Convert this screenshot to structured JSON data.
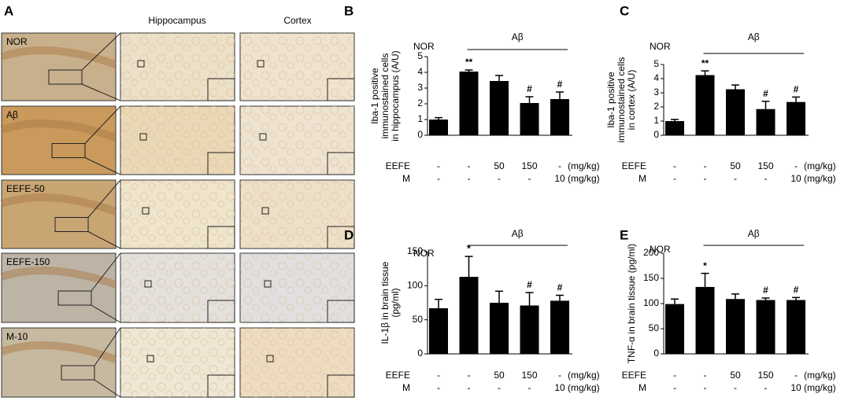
{
  "panel_a": {
    "label": "A",
    "columns": [
      "Hippocampus",
      "Cortex"
    ],
    "rows": [
      "NOR",
      "Aβ",
      "EEFE-50",
      "EEFE-150",
      "M-10"
    ]
  },
  "chart_data": [
    {
      "type": "bar",
      "panel_label": "B",
      "ylabel": [
        "Iba-1 positive",
        "immunostained cells",
        "in hippocampus (A/U)"
      ],
      "categories": [
        null,
        null,
        null,
        null,
        null
      ],
      "values": [
        1.0,
        4.05,
        3.45,
        2.05,
        2.3
      ],
      "errors": [
        0.12,
        0.1,
        0.35,
        0.4,
        0.45
      ],
      "significance": [
        null,
        "**",
        null,
        "#",
        "#"
      ],
      "color": "#000000",
      "ylim": [
        0,
        5
      ],
      "yticks": [
        0,
        1,
        2,
        3,
        4,
        5
      ],
      "groups": {
        "control": "NOR",
        "treated": "Aβ"
      },
      "treatments": [
        {
          "name": "EEFE",
          "cells": [
            "-",
            "-",
            "50",
            "150",
            "-"
          ],
          "unit": "(mg/kg)"
        },
        {
          "name": "M",
          "cells": [
            "-",
            "-",
            "-",
            "-",
            "10"
          ],
          "unit": "(mg/kg)"
        }
      ]
    },
    {
      "type": "bar",
      "panel_label": "C",
      "ylabel": [
        "Iba-1 positive",
        "immunostained cells",
        "in cortex (A/U)"
      ],
      "categories": [
        null,
        null,
        null,
        null,
        null
      ],
      "values": [
        1.0,
        4.25,
        3.25,
        1.85,
        2.35
      ],
      "errors": [
        0.12,
        0.3,
        0.3,
        0.55,
        0.35
      ],
      "significance": [
        null,
        "**",
        null,
        "#",
        "#"
      ],
      "color": "#000000",
      "ylim": [
        0,
        5
      ],
      "yticks": [
        0,
        1,
        2,
        3,
        4,
        5
      ],
      "groups": {
        "control": "NOR",
        "treated": "Aβ"
      },
      "treatments": [
        {
          "name": "EEFE",
          "cells": [
            "-",
            "-",
            "50",
            "150",
            "-"
          ],
          "unit": "(mg/kg)"
        },
        {
          "name": "M",
          "cells": [
            "-",
            "-",
            "-",
            "-",
            "10"
          ],
          "unit": "(mg/kg)"
        }
      ]
    },
    {
      "type": "bar",
      "panel_label": "D",
      "ylabel": [
        "IL-1β in brain tissue",
        "(pg/ml)"
      ],
      "categories": [
        null,
        null,
        null,
        null,
        null
      ],
      "values": [
        67,
        113,
        75,
        71,
        78
      ],
      "errors": [
        13,
        30,
        17,
        19,
        8
      ],
      "significance": [
        null,
        "*",
        null,
        "#",
        "#"
      ],
      "color": "#000000",
      "ylim": [
        0,
        150
      ],
      "yticks": [
        0,
        50,
        100,
        150
      ],
      "groups": {
        "control": "NOR",
        "treated": "Aβ"
      },
      "treatments": [
        {
          "name": "EEFE",
          "cells": [
            "-",
            "-",
            "50",
            "150",
            "-"
          ],
          "unit": "(mg/kg)"
        },
        {
          "name": "M",
          "cells": [
            "-",
            "-",
            "-",
            "-",
            "10"
          ],
          "unit": "(mg/kg)"
        }
      ]
    },
    {
      "type": "bar",
      "panel_label": "E",
      "ylabel": [
        "TNF-α in brain tissue (pg/ml)"
      ],
      "categories": [
        null,
        null,
        null,
        null,
        null
      ],
      "values": [
        99,
        133,
        109,
        107,
        107
      ],
      "errors": [
        10,
        27,
        10,
        4,
        5
      ],
      "significance": [
        null,
        "*",
        null,
        "#",
        "#"
      ],
      "color": "#000000",
      "ylim": [
        0,
        200
      ],
      "yticks": [
        0,
        50,
        100,
        150,
        200
      ],
      "groups": {
        "control": "NOR",
        "treated": "Aβ"
      },
      "treatments": [
        {
          "name": "EEFE",
          "cells": [
            "-",
            "-",
            "50",
            "150",
            "-"
          ],
          "unit": "(mg/kg)"
        },
        {
          "name": "M",
          "cells": [
            "-",
            "-",
            "-",
            "-",
            "10"
          ],
          "unit": "(mg/kg)"
        }
      ]
    }
  ]
}
